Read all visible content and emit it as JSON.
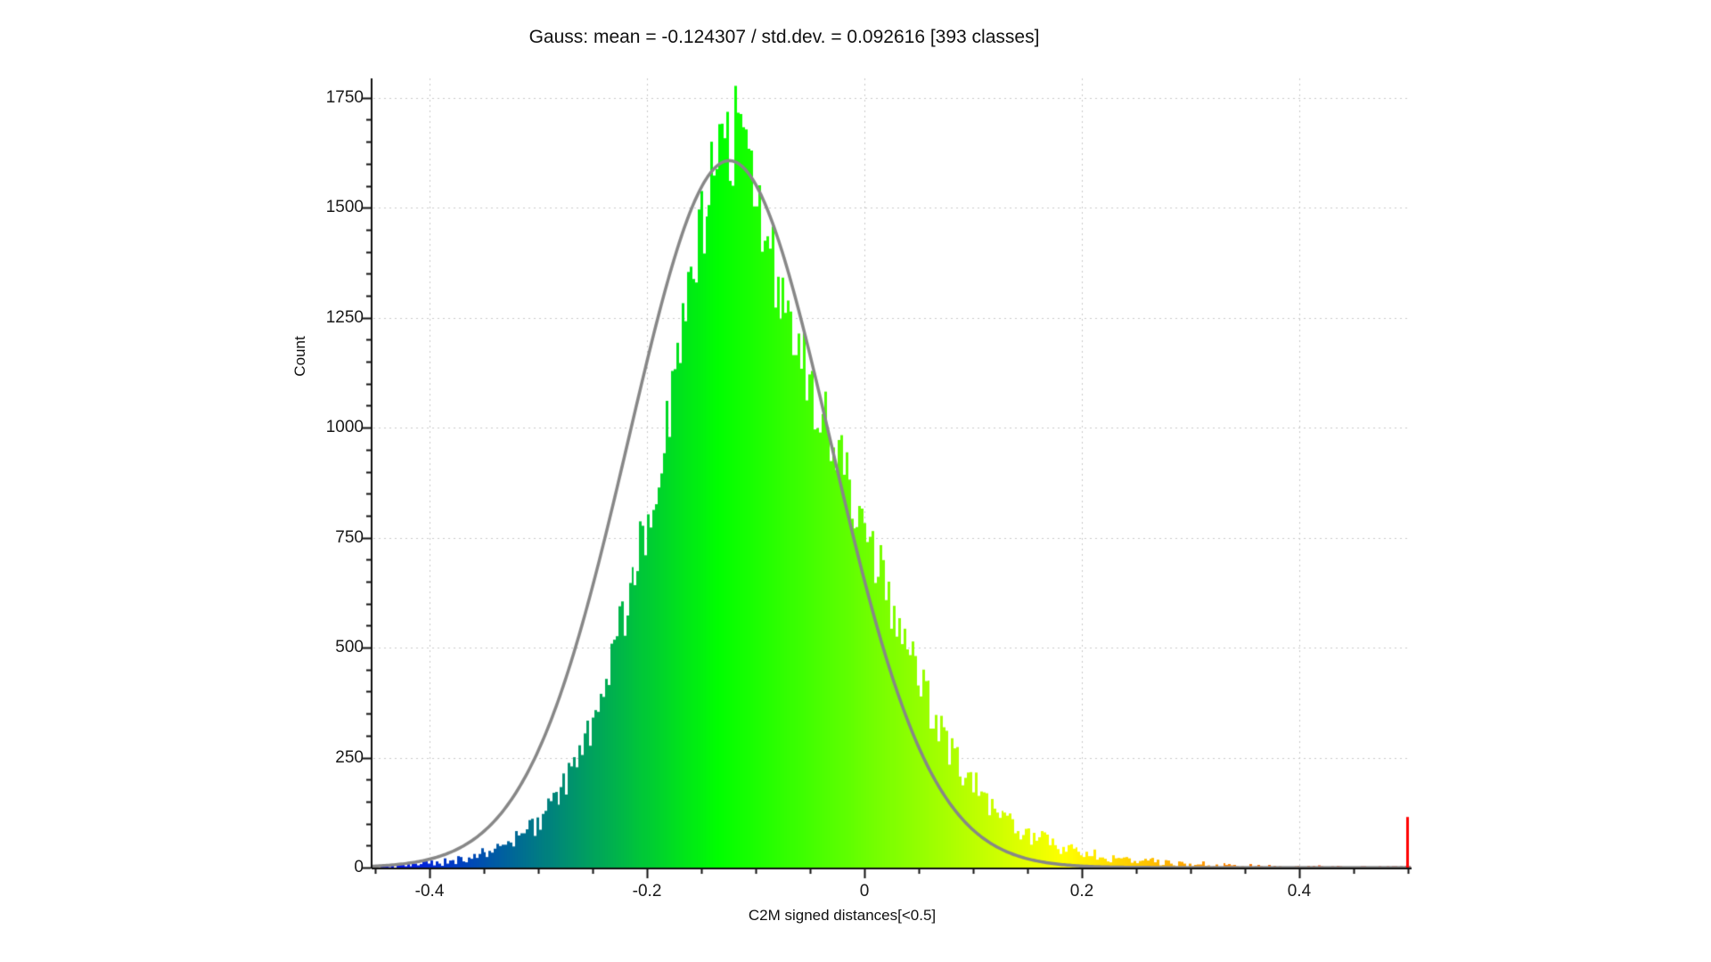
{
  "window": {
    "background": "#ffffff"
  },
  "chart_data": {
    "type": "histogram",
    "title": "Gauss: mean = -0.124307 / std.dev. = 0.092616 [393 classes]",
    "xlabel": "C2M signed distances[<0.5]",
    "ylabel": "Count",
    "classes": 393,
    "x_min": -0.4525,
    "x_max": 0.5025,
    "y_min": 0,
    "y_max": 1794,
    "x_major_ticks": [
      -0.4,
      -0.2,
      0,
      0.2,
      0.4
    ],
    "x_tick_labels": [
      "-0.4",
      "-0.2",
      "0",
      "0.2",
      "0.4"
    ],
    "x_minor_step": 0.05,
    "y_major_ticks": [
      0,
      250,
      500,
      750,
      1000,
      1250,
      1500,
      1750
    ],
    "y_minor_step": 50,
    "grid": {
      "style": "dotted",
      "color": "#c9c9c9",
      "at_major_ticks": true
    },
    "gauss_fit": {
      "mean": -0.124307,
      "std_dev": 0.092616,
      "peak_count": 1607,
      "color": "#878787"
    },
    "histogram": {
      "max_bar_count": 1777,
      "envelope_x": [
        -0.4525,
        -0.43,
        -0.41,
        -0.39,
        -0.37,
        -0.35,
        -0.33,
        -0.31,
        -0.295,
        -0.28,
        -0.265,
        -0.25,
        -0.235,
        -0.22,
        -0.205,
        -0.19,
        -0.175,
        -0.16,
        -0.15,
        -0.14,
        -0.13,
        -0.12,
        -0.11,
        -0.1,
        -0.09,
        -0.08,
        -0.07,
        -0.06,
        -0.05,
        -0.04,
        -0.03,
        -0.02,
        -0.01,
        0,
        0.01,
        0.02,
        0.03,
        0.04,
        0.05,
        0.06,
        0.07,
        0.08,
        0.09,
        0.1,
        0.11,
        0.12,
        0.13,
        0.14,
        0.15,
        0.16,
        0.18,
        0.2,
        0.22,
        0.25,
        0.28,
        0.31,
        0.34,
        0.38,
        0.42,
        0.46,
        0.5025
      ],
      "envelope_count": [
        2,
        4,
        7,
        12,
        20,
        32,
        50,
        80,
        115,
        165,
        235,
        330,
        450,
        590,
        740,
        900,
        1090,
        1300,
        1450,
        1570,
        1645,
        1655,
        1610,
        1520,
        1430,
        1345,
        1260,
        1185,
        1110,
        1040,
        970,
        905,
        840,
        775,
        705,
        635,
        565,
        495,
        430,
        370,
        315,
        265,
        225,
        190,
        160,
        132,
        110,
        92,
        78,
        66,
        48,
        34,
        25,
        16,
        10,
        7,
        4,
        2,
        1.5,
        1,
        1
      ],
      "color_scale_stops": [
        {
          "t": 0.0,
          "color": "#0000ff"
        },
        {
          "t": 0.3333,
          "color": "#00ff00"
        },
        {
          "t": 0.6667,
          "color": "#ffff00"
        },
        {
          "t": 1.0,
          "color": "#ff0000"
        }
      ]
    },
    "saturation_bar": {
      "x": 0.5,
      "count": 115,
      "color": "#ff0000"
    },
    "axis_color": "#111111",
    "text_color": "#1a1a1a"
  }
}
